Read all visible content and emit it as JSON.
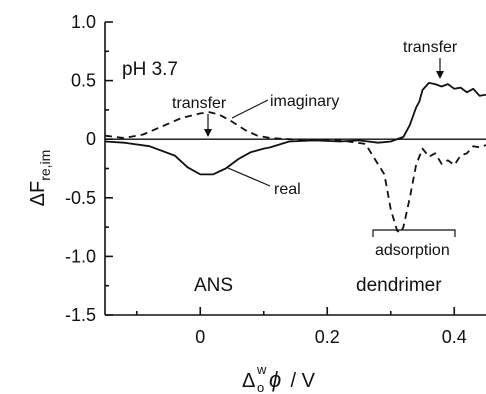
{
  "chart_data": {
    "type": "line",
    "title": "",
    "xlabel": {
      "delta": "Δ",
      "sup": "w",
      "sub": "o",
      "phi": "ϕ",
      "unit": " / V"
    },
    "ylabel": {
      "main": "ΔF",
      "sub": "re,im"
    },
    "xlim": [
      -0.15,
      0.45
    ],
    "ylim": [
      -1.5,
      1.0
    ],
    "x_ticks": [
      0,
      0.2,
      0.4
    ],
    "x_tick_labels": [
      "0",
      "0.2",
      "0.4"
    ],
    "y_ticks": [
      1.0,
      0.5,
      0,
      -0.5,
      -1.0,
      -1.5
    ],
    "y_tick_labels": [
      "1.0",
      "0.5",
      "0",
      "-0.5",
      "-1.0",
      "-1.5"
    ],
    "grid": false,
    "series": [
      {
        "name": "real",
        "style": "solid",
        "x": [
          -0.15,
          -0.12,
          -0.08,
          -0.04,
          -0.02,
          0.0,
          0.02,
          0.04,
          0.06,
          0.08,
          0.1,
          0.11,
          0.14,
          0.18,
          0.22,
          0.25,
          0.28,
          0.3,
          0.32,
          0.33,
          0.34,
          0.345,
          0.35,
          0.36,
          0.37,
          0.38,
          0.39,
          0.4,
          0.41,
          0.42,
          0.43,
          0.44,
          0.45
        ],
        "values": [
          -0.02,
          -0.03,
          -0.06,
          -0.14,
          -0.24,
          -0.3,
          -0.3,
          -0.25,
          -0.17,
          -0.11,
          -0.08,
          -0.07,
          -0.02,
          -0.01,
          -0.02,
          -0.01,
          -0.03,
          -0.02,
          0.02,
          0.12,
          0.27,
          0.32,
          0.42,
          0.48,
          0.47,
          0.45,
          0.47,
          0.43,
          0.44,
          0.4,
          0.43,
          0.37,
          0.38
        ]
      },
      {
        "name": "imaginary",
        "style": "dashed",
        "x": [
          -0.15,
          -0.12,
          -0.09,
          -0.06,
          -0.03,
          0.0,
          0.015,
          0.03,
          0.05,
          0.07,
          0.09,
          0.11,
          0.14,
          0.18,
          0.22,
          0.26,
          0.29,
          0.3,
          0.31,
          0.315,
          0.32,
          0.33,
          0.34,
          0.35,
          0.36,
          0.37,
          0.38,
          0.39,
          0.4,
          0.41,
          0.42,
          0.43,
          0.44,
          0.45
        ],
        "values": [
          0.03,
          0.01,
          0.04,
          0.11,
          0.18,
          0.22,
          0.23,
          0.21,
          0.15,
          0.08,
          0.03,
          0.01,
          0.0,
          -0.01,
          -0.01,
          -0.04,
          -0.3,
          -0.6,
          -0.78,
          -0.8,
          -0.75,
          -0.5,
          -0.22,
          -0.08,
          -0.15,
          -0.12,
          -0.21,
          -0.18,
          -0.22,
          -0.14,
          -0.12,
          -0.06,
          -0.07,
          -0.05
        ]
      }
    ],
    "annotations": {
      "ph": "pH 3.7",
      "transfer_left": "transfer",
      "transfer_right": "transfer",
      "imaginary": "imaginary",
      "real": "real",
      "adsorption": "adsorption",
      "ans": "ANS",
      "dendrimer": "dendrimer"
    }
  }
}
